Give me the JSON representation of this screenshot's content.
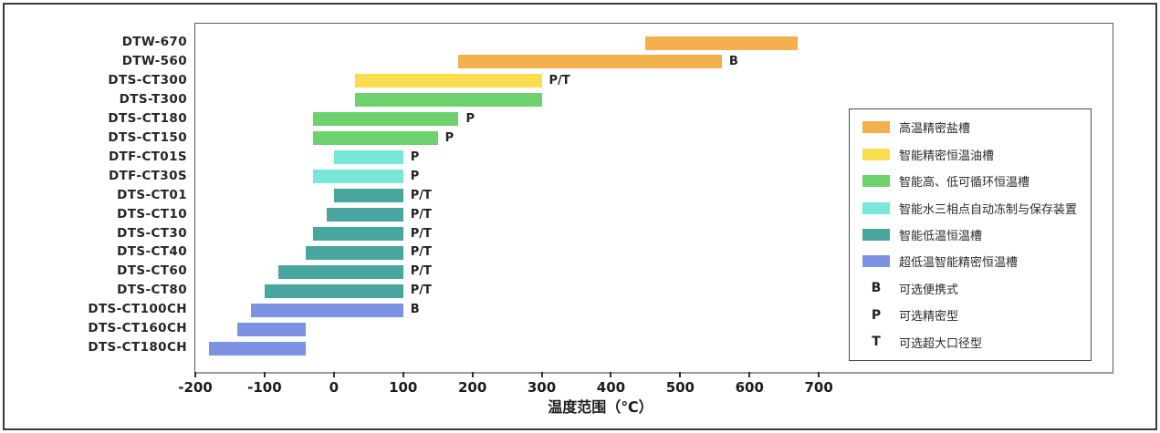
{
  "chart_data": {
    "type": "bar",
    "subtype": "horizontal-range",
    "title": "",
    "xlabel": "温度范围（℃）",
    "ylabel": "",
    "x_ticks": [
      -200,
      -100,
      0,
      100,
      200,
      300,
      400,
      500,
      600,
      700
    ],
    "xlim_visible": [
      -200,
      700
    ],
    "grid": false,
    "legend_position": "right",
    "colors": {
      "高温精密盐槽": "#F3B04C",
      "智能精密恒温油槽": "#FADC4F",
      "智能高、低可循环恒温槽": "#6DD26D",
      "智能水三相点自动冻制与保存装置": "#78E7D8",
      "智能低温恒温槽": "#48A69F",
      "超低温智能精密恒温槽": "#7D92E2"
    },
    "bars": [
      {
        "label": "DTW-670",
        "start": 450,
        "end": 670,
        "category": "高温精密盐槽",
        "annotation": ""
      },
      {
        "label": "DTW-560",
        "start": 180,
        "end": 560,
        "category": "高温精密盐槽",
        "annotation": "B"
      },
      {
        "label": "DTS-CT300",
        "start": 30,
        "end": 300,
        "category": "智能精密恒温油槽",
        "annotation": "P/T"
      },
      {
        "label": "DTS-T300",
        "start": 30,
        "end": 300,
        "category": "智能高、低可循环恒温槽",
        "annotation": ""
      },
      {
        "label": "DTS-CT180",
        "start": -30,
        "end": 180,
        "category": "智能高、低可循环恒温槽",
        "annotation": "P"
      },
      {
        "label": "DTS-CT150",
        "start": -30,
        "end": 150,
        "category": "智能高、低可循环恒温槽",
        "annotation": "P"
      },
      {
        "label": "DTF-CT01S",
        "start": 0,
        "end": 100,
        "category": "智能水三相点自动冻制与保存装置",
        "annotation": "P"
      },
      {
        "label": "DTF-CT30S",
        "start": -30,
        "end": 100,
        "category": "智能水三相点自动冻制与保存装置",
        "annotation": "P"
      },
      {
        "label": "DTS-CT01",
        "start": 0,
        "end": 100,
        "category": "智能低温恒温槽",
        "annotation": "P/T"
      },
      {
        "label": "DTS-CT10",
        "start": -10,
        "end": 100,
        "category": "智能低温恒温槽",
        "annotation": "P/T"
      },
      {
        "label": "DTS-CT30",
        "start": -30,
        "end": 100,
        "category": "智能低温恒温槽",
        "annotation": "P/T"
      },
      {
        "label": "DTS-CT40",
        "start": -40,
        "end": 100,
        "category": "智能低温恒温槽",
        "annotation": "P/T"
      },
      {
        "label": "DTS-CT60",
        "start": -80,
        "end": 100,
        "category": "智能低温恒温槽",
        "annotation": "P/T"
      },
      {
        "label": "DTS-CT80",
        "start": -100,
        "end": 100,
        "category": "智能低温恒温槽",
        "annotation": "P/T"
      },
      {
        "label": "DTS-CT100CH",
        "start": -120,
        "end": 100,
        "category": "超低温智能精密恒温槽",
        "annotation": "B"
      },
      {
        "label": "DTS-CT160CH",
        "start": -140,
        "end": -40,
        "category": "超低温智能精密恒温槽",
        "annotation": ""
      },
      {
        "label": "DTS-CT180CH",
        "start": -180,
        "end": -40,
        "category": "超低温智能精密恒温槽",
        "annotation": ""
      }
    ],
    "legend": {
      "color_items": [
        {
          "label": "高温精密盐槽",
          "color": "#F3B04C"
        },
        {
          "label": "智能精密恒温油槽",
          "color": "#FADC4F"
        },
        {
          "label": "智能高、低可循环恒温槽",
          "color": "#6DD26D"
        },
        {
          "label": "智能水三相点自动冻制与保存装置",
          "color": "#78E7D8"
        },
        {
          "label": "智能低温恒温槽",
          "color": "#48A69F"
        },
        {
          "label": "超低温智能精密恒温槽",
          "color": "#7D92E2"
        }
      ],
      "letter_items": [
        {
          "symbol": "B",
          "label": "可选便携式"
        },
        {
          "symbol": "P",
          "label": "可选精密型"
        },
        {
          "symbol": "T",
          "label": "可选超大口径型"
        }
      ]
    }
  }
}
